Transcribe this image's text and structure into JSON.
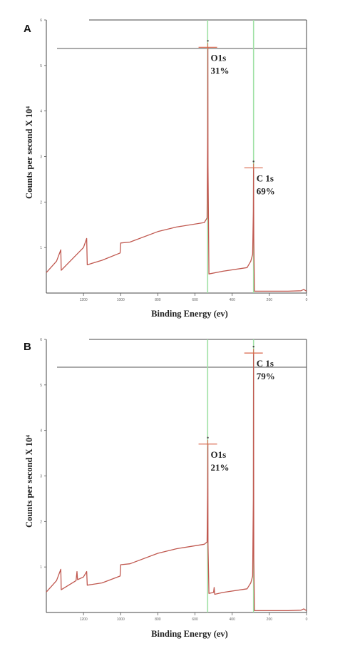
{
  "chart_data": [
    {
      "type": "line",
      "panel": "A",
      "xlabel": "Binding Energy (ev)",
      "ylabel": "Counts per second X 10⁴",
      "x_reversed": true,
      "xlim": [
        1400,
        0
      ],
      "ylim": [
        0,
        6
      ],
      "x_ticks": [
        "1200",
        "1000",
        "800",
        "600",
        "400",
        "200",
        "0"
      ],
      "y_ticks": [
        "1",
        "2",
        "3",
        "4",
        "5",
        "6"
      ],
      "grid": false,
      "legend": "none",
      "series": [
        {
          "color": "#c0584f",
          "x": [
            1400,
            1345,
            1322,
            1320,
            1200,
            1183,
            1180,
            1100,
            1003,
            1000,
            950,
            800,
            700,
            550,
            535,
            532,
            531,
            530,
            525,
            450,
            320,
            300,
            290,
            286,
            285,
            284,
            280,
            230,
            100,
            30,
            15,
            0
          ],
          "y": [
            0.45,
            0.7,
            0.95,
            0.5,
            1.0,
            1.2,
            0.62,
            0.72,
            0.88,
            1.1,
            1.12,
            1.35,
            1.45,
            1.55,
            1.65,
            3.5,
            5.4,
            2.8,
            0.42,
            0.48,
            0.56,
            0.7,
            0.85,
            1.8,
            2.75,
            1.2,
            0.04,
            0.04,
            0.04,
            0.05,
            0.08,
            0.04
          ]
        }
      ],
      "vertical_markers": [
        {
          "x": 532,
          "color": "#9fe0a4"
        },
        {
          "x": 285,
          "color": "#9fe0a4"
        }
      ],
      "peaks": [
        {
          "x": 531,
          "y": 5.4,
          "label": "O1s",
          "percent": "31%"
        },
        {
          "x": 285,
          "y": 2.75,
          "label": "C 1s",
          "percent": "69%"
        }
      ]
    },
    {
      "type": "line",
      "panel": "B",
      "xlabel": "Binding Energy (ev)",
      "ylabel": "Counts per second X 10⁴",
      "x_reversed": true,
      "xlim": [
        1400,
        0
      ],
      "ylim": [
        0,
        6
      ],
      "x_ticks": [
        "1200",
        "1000",
        "800",
        "600",
        "400",
        "200",
        "0"
      ],
      "y_ticks": [
        "1",
        "2",
        "3",
        "4",
        "5",
        "6"
      ],
      "grid": false,
      "legend": "none",
      "series": [
        {
          "color": "#c0584f",
          "x": [
            1400,
            1345,
            1322,
            1320,
            1240,
            1235,
            1232,
            1200,
            1183,
            1180,
            1100,
            1003,
            1000,
            950,
            800,
            700,
            550,
            535,
            532,
            531,
            530,
            525,
            500,
            497,
            494,
            450,
            320,
            300,
            290,
            286,
            285,
            284,
            280,
            230,
            100,
            30,
            15,
            0
          ],
          "y": [
            0.45,
            0.7,
            0.95,
            0.5,
            0.7,
            0.9,
            0.72,
            0.78,
            0.9,
            0.6,
            0.65,
            0.8,
            1.05,
            1.07,
            1.3,
            1.4,
            1.5,
            1.55,
            2.8,
            3.7,
            1.5,
            0.42,
            0.44,
            0.55,
            0.4,
            0.44,
            0.52,
            0.65,
            0.8,
            2.5,
            5.7,
            1.2,
            0.04,
            0.04,
            0.04,
            0.05,
            0.08,
            0.04
          ]
        }
      ],
      "vertical_markers": [
        {
          "x": 532,
          "color": "#9fe0a4"
        },
        {
          "x": 285,
          "color": "#9fe0a4"
        }
      ],
      "peaks": [
        {
          "x": 531,
          "y": 3.7,
          "label": "O1s",
          "percent": "21%"
        },
        {
          "x": 285,
          "y": 5.7,
          "label": "C 1s",
          "percent": "79%"
        }
      ]
    }
  ]
}
